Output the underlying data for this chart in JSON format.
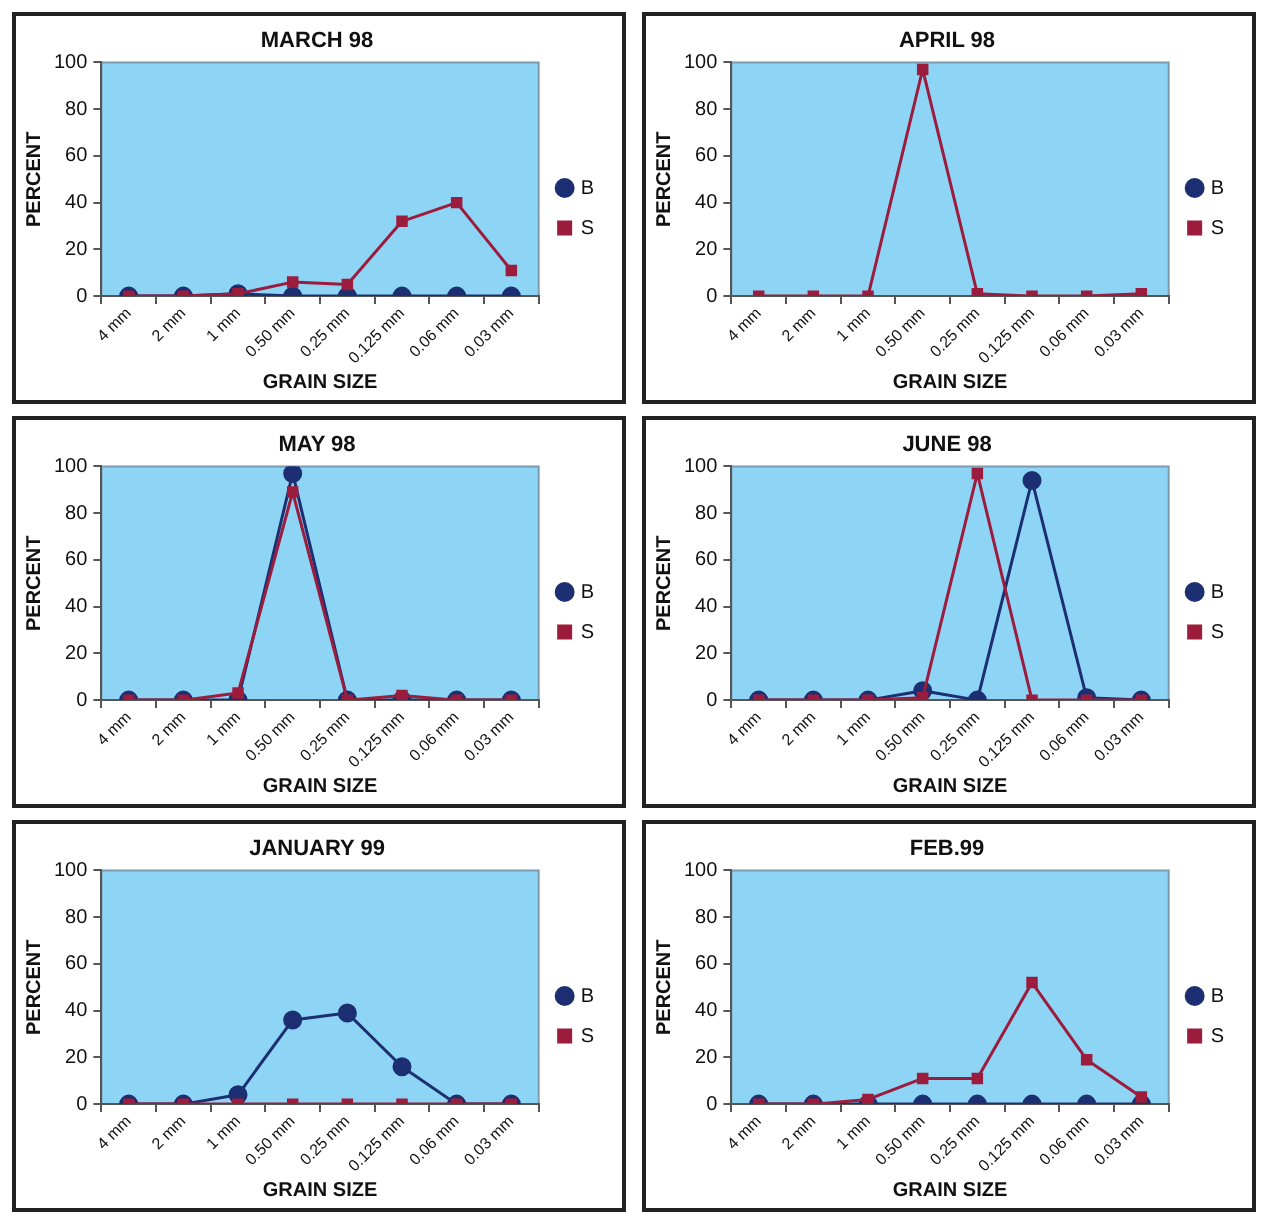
{
  "chart_data": [
    {
      "type": "line",
      "title": "MARCH 98",
      "xlabel": "GRAIN SIZE",
      "ylabel": "PERCENT",
      "categories": [
        "4 mm",
        "2 mm",
        "1 mm",
        "0.50 mm",
        "0.25 mm",
        "0.125 mm",
        "0.06 mm",
        "0.03 mm"
      ],
      "ylim": [
        0,
        100
      ],
      "yticks": [
        0,
        20,
        40,
        60,
        80,
        100
      ],
      "grid": false,
      "legend": "right",
      "series": [
        {
          "name": "B",
          "color": "#1c2f72",
          "marker": "circle",
          "values": [
            0,
            0,
            1,
            0,
            0,
            0,
            0,
            0
          ]
        },
        {
          "name": "S",
          "color": "#9b1c3c",
          "marker": "square",
          "values": [
            0,
            0,
            1,
            6,
            5,
            32,
            40,
            11
          ]
        }
      ]
    },
    {
      "type": "line",
      "title": "APRIL 98",
      "xlabel": "GRAIN SIZE",
      "ylabel": "PERCENT",
      "categories": [
        "4 mm",
        "2 mm",
        "1 mm",
        "0.50 mm",
        "0.25 mm",
        "0.125 mm",
        "0.06 mm",
        "0.03 mm"
      ],
      "ylim": [
        0,
        100
      ],
      "yticks": [
        0,
        20,
        40,
        60,
        80,
        100
      ],
      "grid": false,
      "legend": "right",
      "series": [
        {
          "name": "B",
          "color": "#1c2f72",
          "marker": "circle",
          "values": [
            null,
            null,
            null,
            null,
            null,
            null,
            null,
            null
          ]
        },
        {
          "name": "S",
          "color": "#9b1c3c",
          "marker": "square",
          "values": [
            0,
            0,
            0,
            97,
            1,
            0,
            0,
            1
          ]
        }
      ]
    },
    {
      "type": "line",
      "title": "MAY 98",
      "xlabel": "GRAIN SIZE",
      "ylabel": "PERCENT",
      "categories": [
        "4 mm",
        "2 mm",
        "1 mm",
        "0.50 mm",
        "0.25 mm",
        "0.125 mm",
        "0.06 mm",
        "0.03 mm"
      ],
      "ylim": [
        0,
        100
      ],
      "yticks": [
        0,
        20,
        40,
        60,
        80,
        100
      ],
      "grid": false,
      "legend": "right",
      "series": [
        {
          "name": "B",
          "color": "#1c2f72",
          "marker": "circle",
          "values": [
            0,
            0,
            0,
            97,
            0,
            0,
            0,
            0
          ]
        },
        {
          "name": "S",
          "color": "#9b1c3c",
          "marker": "square",
          "values": [
            0,
            0,
            3,
            89,
            0,
            2,
            0,
            0
          ]
        }
      ]
    },
    {
      "type": "line",
      "title": "JUNE 98",
      "xlabel": "GRAIN SIZE",
      "ylabel": "PERCENT",
      "categories": [
        "4 mm",
        "2 mm",
        "1 mm",
        "0.50 mm",
        "0.25 mm",
        "0.125 mm",
        "0.06 mm",
        "0.03 mm"
      ],
      "ylim": [
        0,
        100
      ],
      "yticks": [
        0,
        20,
        40,
        60,
        80,
        100
      ],
      "grid": false,
      "legend": "right",
      "series": [
        {
          "name": "B",
          "color": "#1c2f72",
          "marker": "circle",
          "values": [
            0,
            0,
            0,
            4,
            0,
            94,
            1,
            0
          ]
        },
        {
          "name": "S",
          "color": "#9b1c3c",
          "marker": "square",
          "values": [
            0,
            0,
            0,
            1,
            97,
            0,
            0,
            0
          ]
        }
      ]
    },
    {
      "type": "line",
      "title": "JANUARY 99",
      "xlabel": "GRAIN SIZE",
      "ylabel": "PERCENT",
      "categories": [
        "4 mm",
        "2 mm",
        "1 mm",
        "0.50 mm",
        "0.25 mm",
        "0.125 mm",
        "0.06 mm",
        "0.03 mm"
      ],
      "ylim": [
        0,
        100
      ],
      "yticks": [
        0,
        20,
        40,
        60,
        80,
        100
      ],
      "grid": false,
      "legend": "right",
      "series": [
        {
          "name": "B",
          "color": "#1c2f72",
          "marker": "circle",
          "values": [
            0,
            0,
            4,
            36,
            39,
            16,
            0,
            0
          ]
        },
        {
          "name": "S",
          "color": "#9b1c3c",
          "marker": "square",
          "values": [
            0,
            0,
            0,
            0,
            0,
            0,
            0,
            0
          ]
        }
      ]
    },
    {
      "type": "line",
      "title": "FEB.99",
      "xlabel": "GRAIN SIZE",
      "ylabel": "PERCENT",
      "categories": [
        "4 mm",
        "2 mm",
        "1 mm",
        "0.50 mm",
        "0.25 mm",
        "0.125 mm",
        "0.06 mm",
        "0.03 mm"
      ],
      "ylim": [
        0,
        100
      ],
      "yticks": [
        0,
        20,
        40,
        60,
        80,
        100
      ],
      "grid": false,
      "legend": "right",
      "series": [
        {
          "name": "B",
          "color": "#1c2f72",
          "marker": "circle",
          "values": [
            0,
            0,
            0,
            0,
            0,
            0,
            0,
            0
          ]
        },
        {
          "name": "S",
          "color": "#9b1c3c",
          "marker": "square",
          "values": [
            0,
            0,
            2,
            11,
            11,
            52,
            19,
            3
          ]
        }
      ]
    }
  ]
}
